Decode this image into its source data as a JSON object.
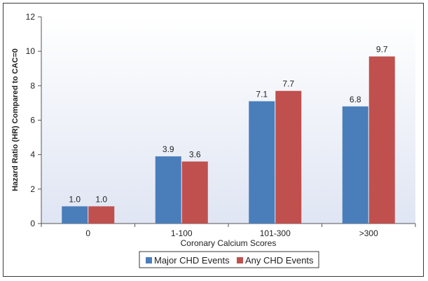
{
  "chart_data": {
    "type": "bar",
    "title": "",
    "xlabel": "Coronary Calcium Scores",
    "ylabel": "Hazard Ratio (HR) Compared to CAC=0",
    "categories": [
      "0",
      "1-100",
      "101-300",
      ">300"
    ],
    "ylim": [
      0,
      12
    ],
    "yticks": [
      "0",
      "2",
      "4",
      "6",
      "8",
      "10",
      "12"
    ],
    "grid": false,
    "legend_position": "bottom",
    "series": [
      {
        "name": "Major CHD Events",
        "color": "#4a7ebb",
        "values": [
          1.0,
          3.9,
          7.1,
          6.8
        ],
        "labels": [
          "1.0",
          "3.9",
          "7.1",
          "6.8"
        ]
      },
      {
        "name": "Any CHD Events",
        "color": "#c0504d",
        "values": [
          1.0,
          3.6,
          7.7,
          9.7
        ],
        "labels": [
          "1.0",
          "3.6",
          "7.7",
          "9.7"
        ]
      }
    ],
    "plot_background_gradient": [
      "#ffffff",
      "#dfe5f3"
    ]
  }
}
